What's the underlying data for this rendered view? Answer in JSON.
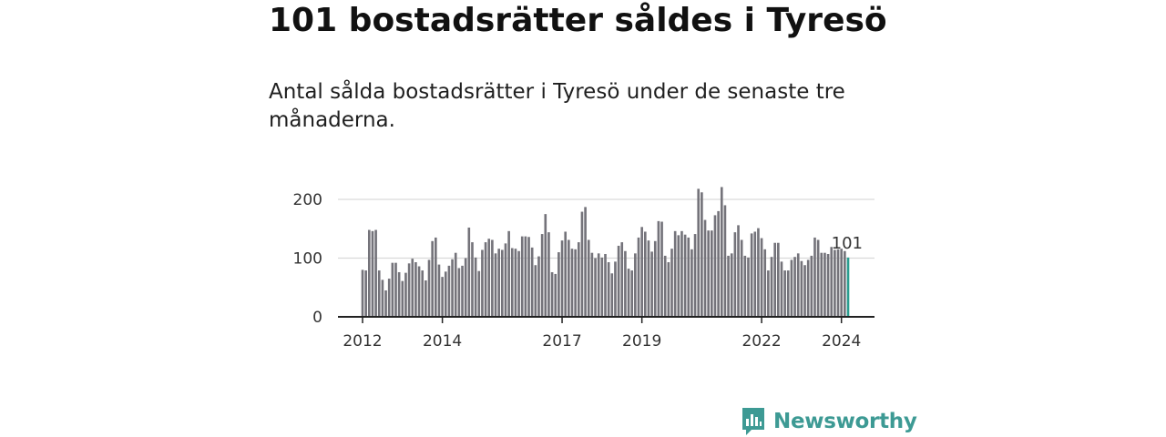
{
  "header": {
    "title": "101 bostadsrätter såldes i Tyresö",
    "subtitle": "Antal sålda bostadsrätter i Tyresö under de senaste tre månaderna."
  },
  "brand": {
    "name": "Newsworthy",
    "color": "#3d9a94"
  },
  "colors": {
    "bar": "#74737a",
    "highlight": "#2a9d8f",
    "grid": "#d9d9d9",
    "axis": "#222222"
  },
  "chart_data": {
    "type": "bar",
    "title": "101 bostadsrätter såldes i Tyresö",
    "xlabel": "",
    "ylabel": "",
    "ylim": [
      0,
      250
    ],
    "yticks": [
      0,
      100,
      200
    ],
    "x_tick_labels": [
      {
        "label": "2012",
        "index": 0
      },
      {
        "label": "2014",
        "index": 24
      },
      {
        "label": "2017",
        "index": 60
      },
      {
        "label": "2019",
        "index": 84
      },
      {
        "label": "2022",
        "index": 120
      },
      {
        "label": "2024",
        "index": 144
      }
    ],
    "highlight_label": "101",
    "values": [
      80,
      79,
      148,
      146,
      148,
      79,
      63,
      45,
      65,
      92,
      92,
      76,
      61,
      75,
      91,
      99,
      93,
      86,
      79,
      62,
      97,
      129,
      135,
      89,
      68,
      77,
      87,
      98,
      109,
      83,
      87,
      100,
      152,
      127,
      101,
      78,
      114,
      127,
      133,
      131,
      108,
      116,
      114,
      125,
      146,
      117,
      116,
      112,
      137,
      137,
      136,
      118,
      88,
      103,
      141,
      175,
      144,
      76,
      73,
      110,
      130,
      145,
      131,
      116,
      115,
      127,
      179,
      187,
      131,
      109,
      100,
      108,
      101,
      107,
      93,
      74,
      94,
      121,
      127,
      112,
      82,
      79,
      108,
      135,
      153,
      145,
      130,
      111,
      129,
      163,
      162,
      104,
      93,
      116,
      146,
      139,
      146,
      140,
      135,
      115,
      141,
      218,
      212,
      165,
      147,
      147,
      173,
      180,
      221,
      190,
      104,
      108,
      144,
      156,
      131,
      104,
      101,
      142,
      145,
      151,
      134,
      115,
      79,
      102,
      126,
      126,
      94,
      79,
      79,
      97,
      102,
      108,
      95,
      88,
      97,
      104,
      135,
      131,
      109,
      109,
      107,
      119,
      114,
      115,
      116,
      112,
      101
    ]
  }
}
